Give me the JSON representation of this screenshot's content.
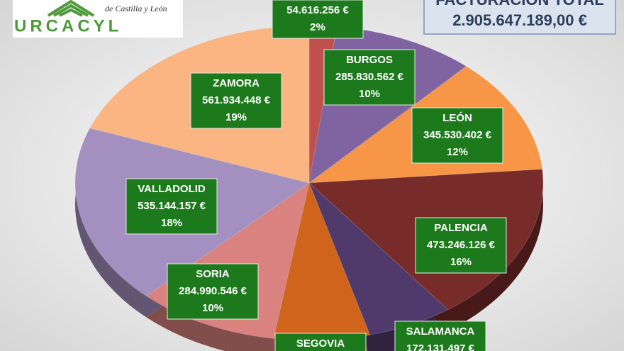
{
  "header": {
    "logo_text": "URCACYL",
    "logo_subtitle": "de Castilla y León"
  },
  "chart_data": {
    "type": "pie",
    "title": "FACTURACIÓN TOTAL",
    "subtitle": "2.905.647.189,00 €",
    "categories": [
      null,
      "BURGOS",
      "LEÓN",
      "PALENCIA",
      "SALAMANCA",
      "SEGOVIA",
      "SORIA",
      "VALLADOLID",
      "ZAMORA"
    ],
    "values": [
      54616256,
      285830562,
      345530402,
      473246126,
      172131497,
      192223195,
      284990546,
      535144157,
      561934448
    ],
    "value_labels": [
      "54.616.256 €",
      "285.830.562 €",
      "345.530.402 €",
      "473.246.126 €",
      "172.131.497 €",
      null,
      "284.990.546 €",
      "535.144.157 €",
      "561.934.448 €"
    ],
    "percent_labels": [
      "2%",
      "10%",
      "12%",
      "16%",
      null,
      null,
      "10%",
      "18%",
      "19%"
    ],
    "colors": [
      "#c0504d",
      "#8064a2",
      "#f79646",
      "#772c2a",
      "#4f3a6b",
      "#d0641c",
      "#d9827f",
      "#a390c0",
      "#fab583"
    ]
  }
}
